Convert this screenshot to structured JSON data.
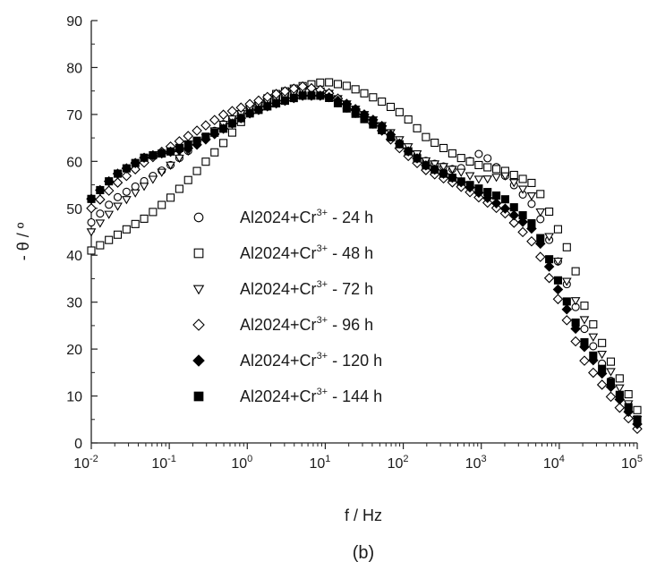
{
  "chart_data": {
    "type": "scatter",
    "xlabel": "f / Hz",
    "ylabel": "- θ / º",
    "caption": "(b)",
    "x_scale": "log",
    "xlim": [
      0.01,
      100000
    ],
    "ylim": [
      0,
      90
    ],
    "x_ticks": [
      {
        "value": 0.01,
        "base": "10",
        "exp": "-2"
      },
      {
        "value": 0.1,
        "base": "10",
        "exp": "-1"
      },
      {
        "value": 1,
        "base": "10",
        "exp": "0"
      },
      {
        "value": 10,
        "base": "10",
        "exp": "1"
      },
      {
        "value": 100,
        "base": "10",
        "exp": "2"
      },
      {
        "value": 1000,
        "base": "10",
        "exp": "3"
      },
      {
        "value": 10000,
        "base": "10",
        "exp": "4"
      },
      {
        "value": 100000,
        "base": "10",
        "exp": "5"
      }
    ],
    "y_ticks": [
      0,
      10,
      20,
      30,
      40,
      50,
      60,
      70,
      80,
      90
    ],
    "grid": false,
    "legend_position": "lower-left",
    "series": [
      {
        "name": "Al2024+Cr3+ - 24 h",
        "legend_parts": [
          "Al2024+Cr",
          "3+",
          " - 24 h"
        ],
        "marker": "circle-open",
        "points": [
          [
            0.01,
            47
          ],
          [
            0.02,
            52
          ],
          [
            0.05,
            56
          ],
          [
            0.1,
            59
          ],
          [
            0.2,
            63
          ],
          [
            0.5,
            68
          ],
          [
            1,
            71
          ],
          [
            2,
            73
          ],
          [
            5,
            74.5
          ],
          [
            10,
            74
          ],
          [
            20,
            71
          ],
          [
            50,
            67
          ],
          [
            100,
            63
          ],
          [
            200,
            60
          ],
          [
            500,
            58
          ],
          [
            1000,
            62
          ],
          [
            2000,
            57
          ],
          [
            5000,
            50
          ],
          [
            8000,
            42
          ],
          [
            10000,
            38
          ],
          [
            20000,
            25
          ],
          [
            50000,
            12
          ],
          [
            100000,
            5
          ]
        ]
      },
      {
        "name": "Al2024+Cr3+ - 48 h",
        "legend_parts": [
          "Al2024+Cr",
          "3+",
          " - 48 h"
        ],
        "marker": "square-open",
        "points": [
          [
            0.01,
            41
          ],
          [
            0.02,
            44
          ],
          [
            0.05,
            48
          ],
          [
            0.1,
            52
          ],
          [
            0.2,
            57
          ],
          [
            0.5,
            64
          ],
          [
            1,
            70
          ],
          [
            2,
            74
          ],
          [
            5,
            76
          ],
          [
            10,
            77
          ],
          [
            20,
            76
          ],
          [
            50,
            73
          ],
          [
            100,
            70
          ],
          [
            200,
            65
          ],
          [
            500,
            61
          ],
          [
            1000,
            59
          ],
          [
            2000,
            58
          ],
          [
            5000,
            55
          ],
          [
            10000,
            45
          ],
          [
            15000,
            39
          ],
          [
            20000,
            30
          ],
          [
            50000,
            16
          ],
          [
            100000,
            7
          ]
        ]
      },
      {
        "name": "Al2024+Cr3+ - 72 h",
        "legend_parts": [
          "Al2024+Cr",
          "3+",
          " - 72 h"
        ],
        "marker": "triangle-down-open",
        "points": [
          [
            0.01,
            45
          ],
          [
            0.02,
            50
          ],
          [
            0.05,
            55
          ],
          [
            0.1,
            59
          ],
          [
            0.2,
            63
          ],
          [
            0.5,
            68
          ],
          [
            1,
            71
          ],
          [
            2,
            73
          ],
          [
            5,
            75
          ],
          [
            10,
            75
          ],
          [
            20,
            72
          ],
          [
            50,
            68
          ],
          [
            100,
            64
          ],
          [
            200,
            60
          ],
          [
            500,
            58
          ],
          [
            1000,
            56
          ],
          [
            2000,
            57
          ],
          [
            5000,
            52
          ],
          [
            10000,
            38
          ],
          [
            20000,
            27
          ],
          [
            50000,
            14
          ],
          [
            100000,
            5
          ]
        ]
      },
      {
        "name": "Al2024+Cr3+ - 96 h",
        "legend_parts": [
          "Al2024+Cr",
          "3+",
          " - 96 h"
        ],
        "marker": "diamond-open",
        "points": [
          [
            0.01,
            50
          ],
          [
            0.02,
            55
          ],
          [
            0.05,
            60
          ],
          [
            0.1,
            63
          ],
          [
            0.2,
            66
          ],
          [
            0.5,
            70
          ],
          [
            1,
            72
          ],
          [
            2,
            74
          ],
          [
            5,
            76
          ],
          [
            10,
            75
          ],
          [
            20,
            72
          ],
          [
            50,
            67
          ],
          [
            100,
            62
          ],
          [
            200,
            58
          ],
          [
            500,
            55
          ],
          [
            1000,
            52
          ],
          [
            2000,
            49
          ],
          [
            5000,
            42
          ],
          [
            10000,
            30
          ],
          [
            20000,
            18
          ],
          [
            50000,
            9
          ],
          [
            100000,
            3
          ]
        ]
      },
      {
        "name": "Al2024+Cr3+ - 120 h",
        "legend_parts": [
          "Al2024+Cr",
          "3+",
          " - 120 h"
        ],
        "marker": "diamond-filled",
        "points": [
          [
            0.01,
            52
          ],
          [
            0.02,
            57
          ],
          [
            0.05,
            61
          ],
          [
            0.1,
            62
          ],
          [
            0.2,
            63
          ],
          [
            0.5,
            67
          ],
          [
            1,
            70
          ],
          [
            2,
            72
          ],
          [
            5,
            74
          ],
          [
            10,
            74
          ],
          [
            20,
            72
          ],
          [
            50,
            68
          ],
          [
            100,
            63
          ],
          [
            200,
            59
          ],
          [
            500,
            56
          ],
          [
            1000,
            53
          ],
          [
            2000,
            50
          ],
          [
            5000,
            45
          ],
          [
            10000,
            32
          ],
          [
            20000,
            21
          ],
          [
            50000,
            11
          ],
          [
            100000,
            4
          ]
        ]
      },
      {
        "name": "Al2024+Cr3+ - 144 h",
        "legend_parts": [
          "Al2024+Cr",
          "3+",
          " - 144 h"
        ],
        "marker": "square-filled",
        "points": [
          [
            0.01,
            52
          ],
          [
            0.02,
            57
          ],
          [
            0.05,
            61
          ],
          [
            0.1,
            62
          ],
          [
            0.2,
            64
          ],
          [
            0.5,
            67
          ],
          [
            1,
            70
          ],
          [
            2,
            72
          ],
          [
            5,
            74
          ],
          [
            10,
            74
          ],
          [
            20,
            71
          ],
          [
            50,
            67
          ],
          [
            100,
            63
          ],
          [
            200,
            59
          ],
          [
            500,
            56
          ],
          [
            1000,
            54
          ],
          [
            2000,
            52
          ],
          [
            5000,
            46
          ],
          [
            10000,
            34
          ],
          [
            20000,
            22
          ],
          [
            50000,
            12
          ],
          [
            100000,
            5
          ]
        ]
      }
    ]
  }
}
